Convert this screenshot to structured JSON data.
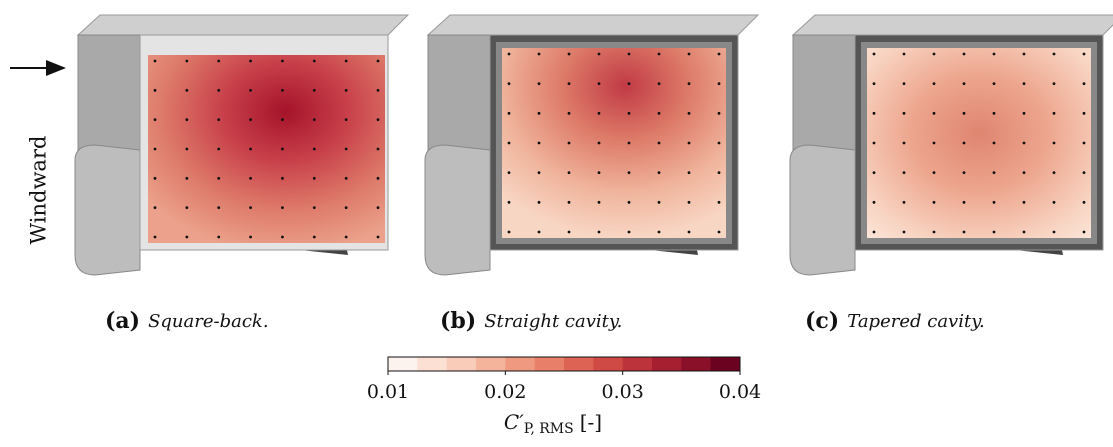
{
  "annotation": "Windward",
  "panels": [
    {
      "label": "(a)",
      "caption": "Square-back."
    },
    {
      "label": "(b)",
      "caption": "Straight cavity."
    },
    {
      "label": "(c)",
      "caption": "Tapered cavity."
    }
  ],
  "colorbar": {
    "range": [
      0.01,
      0.04
    ],
    "ticks": [
      0.01,
      0.02,
      0.03,
      0.04
    ],
    "label": {
      "symbol": "C′",
      "subscript": "P, RMS",
      "unit": "[-]"
    }
  }
}
